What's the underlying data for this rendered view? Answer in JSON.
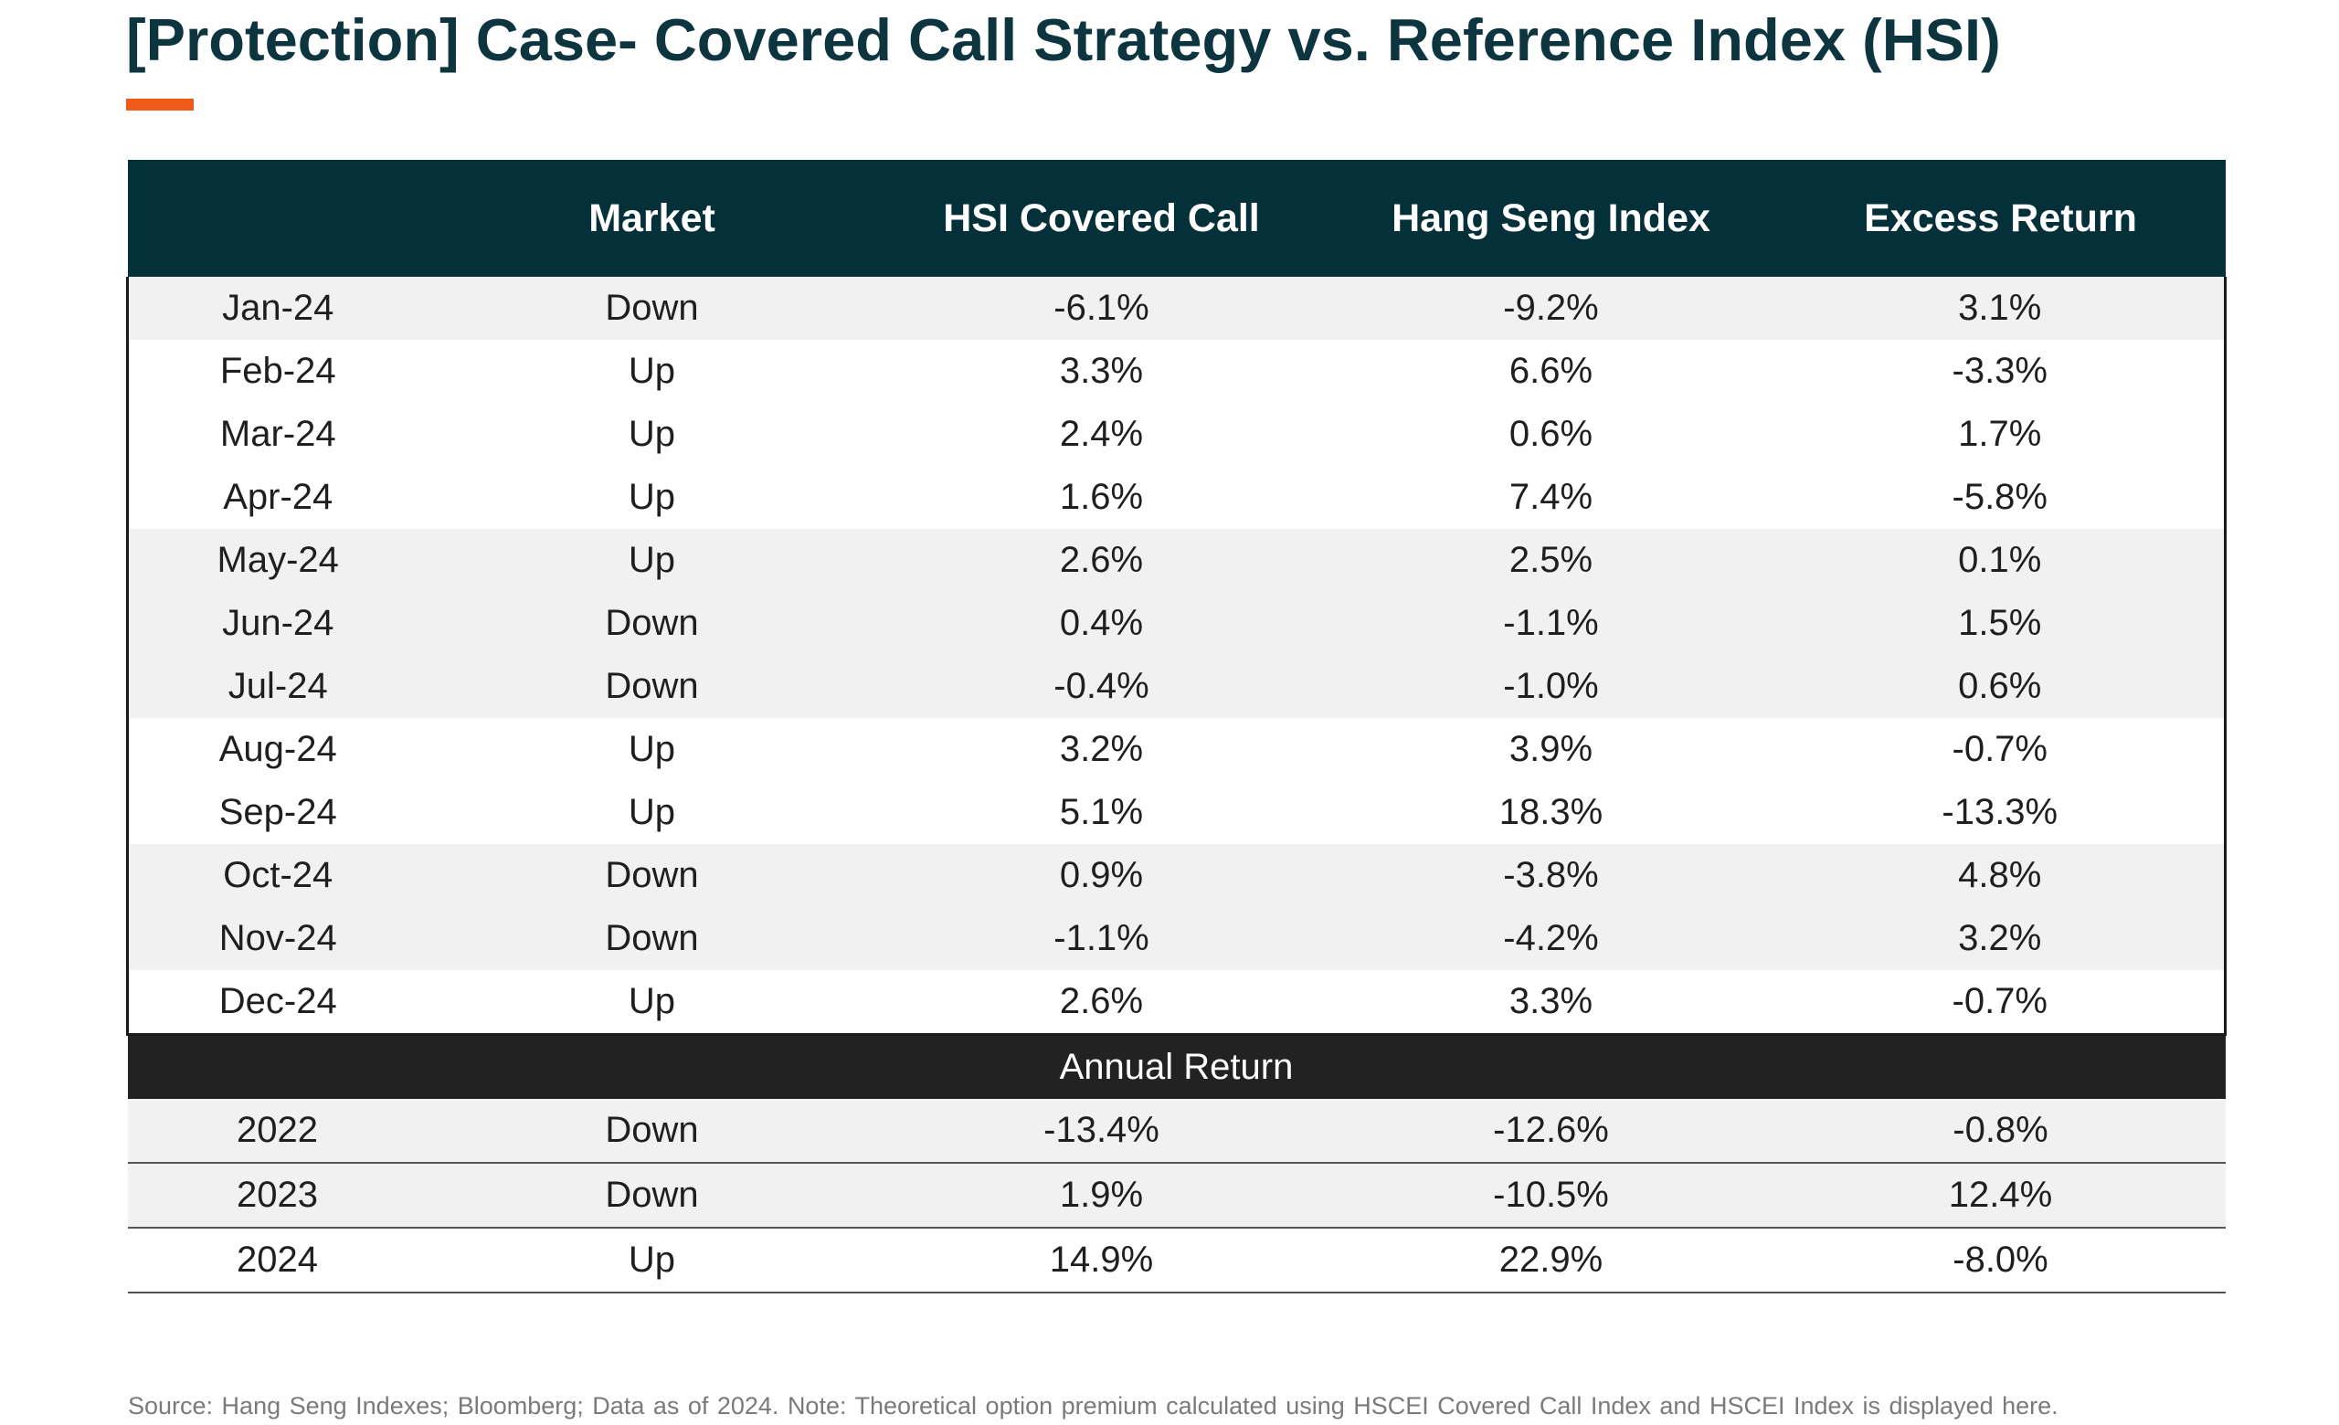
{
  "title": "[Protection] Case- Covered Call Strategy vs. Reference Index (HSI)",
  "accent_color": "#f05a1a",
  "header_color": "#043039",
  "table": {
    "columns": [
      "",
      "Market",
      "HSI Covered Call",
      "Hang Seng Index",
      "Excess Return"
    ],
    "monthly_rows": [
      [
        "Jan-24",
        "Down",
        "-6.1%",
        "-9.2%",
        "3.1%"
      ],
      [
        "Feb-24",
        "Up",
        "3.3%",
        "6.6%",
        "-3.3%"
      ],
      [
        "Mar-24",
        "Up",
        "2.4%",
        "0.6%",
        "1.7%"
      ],
      [
        "Apr-24",
        "Up",
        "1.6%",
        "7.4%",
        "-5.8%"
      ],
      [
        "May-24",
        "Up",
        "2.6%",
        "2.5%",
        "0.1%"
      ],
      [
        "Jun-24",
        "Down",
        "0.4%",
        "-1.1%",
        "1.5%"
      ],
      [
        "Jul-24",
        "Down",
        "-0.4%",
        "-1.0%",
        "0.6%"
      ],
      [
        "Aug-24",
        "Up",
        "3.2%",
        "3.9%",
        "-0.7%"
      ],
      [
        "Sep-24",
        "Up",
        "5.1%",
        "18.3%",
        "-13.3%"
      ],
      [
        "Oct-24",
        "Down",
        "0.9%",
        "-3.8%",
        "4.8%"
      ],
      [
        "Nov-24",
        "Down",
        "-1.1%",
        "-4.2%",
        "3.2%"
      ],
      [
        "Dec-24",
        "Up",
        "2.6%",
        "3.3%",
        "-0.7%"
      ]
    ],
    "annual_section_label": "Annual Return",
    "annual_rows": [
      [
        "2022",
        "Down",
        "-13.4%",
        "-12.6%",
        "-0.8%"
      ],
      [
        "2023",
        "Down",
        "1.9%",
        "-10.5%",
        "12.4%"
      ],
      [
        "2024",
        "Up",
        "14.9%",
        "22.9%",
        "-8.0%"
      ]
    ]
  },
  "footnote": "Source: Hang Seng Indexes; Bloomberg; Data as of 2024. Note: Theoretical option premium calculated using HSCEI Covered Call Index and HSCEI Index is displayed here."
}
